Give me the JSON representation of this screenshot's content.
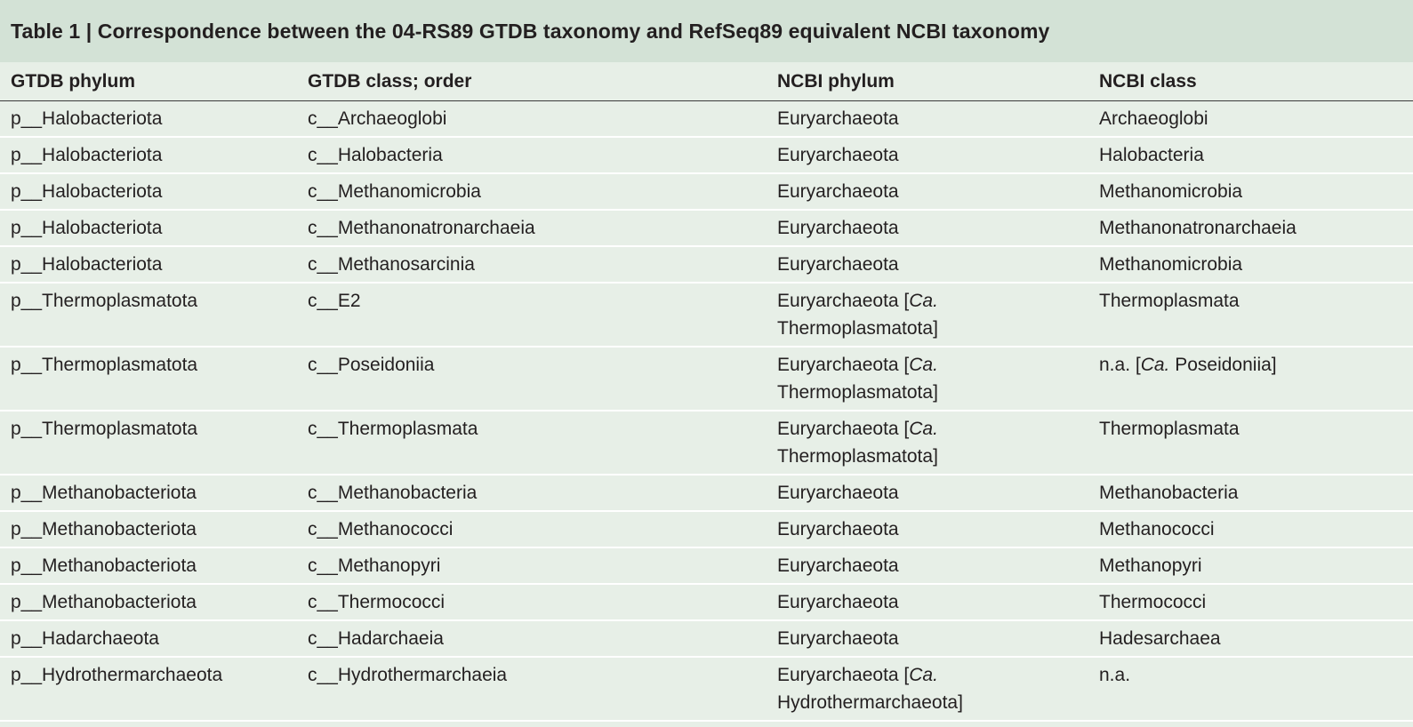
{
  "title": "Table 1 | Correspondence between the 04-RS89 GTDB taxonomy and RefSeq89 equivalent NCBI taxonomy",
  "headers": [
    "GTDB phylum",
    "GTDB class; order",
    "NCBI phylum",
    "NCBI class"
  ],
  "rows": [
    {
      "gtdb_phylum": "p__Halobacteriota",
      "gtdb_class": "c__Archaeoglobi",
      "ncbi_phylum": {
        "pre": "Euryarchaeota",
        "ca": "",
        "post": ""
      },
      "ncbi_class": {
        "pre": "Archaeoglobi",
        "ca": "",
        "post": ""
      }
    },
    {
      "gtdb_phylum": "p__Halobacteriota",
      "gtdb_class": "c__Halobacteria",
      "ncbi_phylum": {
        "pre": "Euryarchaeota",
        "ca": "",
        "post": ""
      },
      "ncbi_class": {
        "pre": "Halobacteria",
        "ca": "",
        "post": ""
      }
    },
    {
      "gtdb_phylum": "p__Halobacteriota",
      "gtdb_class": "c__Methanomicrobia",
      "ncbi_phylum": {
        "pre": "Euryarchaeota",
        "ca": "",
        "post": ""
      },
      "ncbi_class": {
        "pre": "Methanomicrobia",
        "ca": "",
        "post": ""
      }
    },
    {
      "gtdb_phylum": "p__Halobacteriota",
      "gtdb_class": "c__Methanonatronarchaeia",
      "ncbi_phylum": {
        "pre": "Euryarchaeota",
        "ca": "",
        "post": ""
      },
      "ncbi_class": {
        "pre": "Methanonatronarchaeia",
        "ca": "",
        "post": ""
      }
    },
    {
      "gtdb_phylum": "p__Halobacteriota",
      "gtdb_class": "c__Methanosarcinia",
      "ncbi_phylum": {
        "pre": "Euryarchaeota",
        "ca": "",
        "post": ""
      },
      "ncbi_class": {
        "pre": "Methanomicrobia",
        "ca": "",
        "post": ""
      }
    },
    {
      "gtdb_phylum": "p__Thermoplasmatota",
      "gtdb_class": "c__E2",
      "ncbi_phylum": {
        "pre": "Euryarchaeota [",
        "ca": "Ca.",
        "post": "\nThermoplasmatota]"
      },
      "ncbi_class": {
        "pre": "Thermoplasmata",
        "ca": "",
        "post": ""
      }
    },
    {
      "gtdb_phylum": "p__Thermoplasmatota",
      "gtdb_class": "c__Poseidoniia",
      "ncbi_phylum": {
        "pre": "Euryarchaeota [",
        "ca": "Ca.",
        "post": "\nThermoplasmatota]"
      },
      "ncbi_class": {
        "pre": "n.a. [",
        "ca": "Ca.",
        "post": " Poseidoniia]"
      }
    },
    {
      "gtdb_phylum": "p__Thermoplasmatota",
      "gtdb_class": "c__Thermoplasmata",
      "ncbi_phylum": {
        "pre": "Euryarchaeota [",
        "ca": "Ca.",
        "post": "\nThermoplasmatota]"
      },
      "ncbi_class": {
        "pre": "Thermoplasmata",
        "ca": "",
        "post": ""
      }
    },
    {
      "gtdb_phylum": "p__Methanobacteriota",
      "gtdb_class": "c__Methanobacteria",
      "ncbi_phylum": {
        "pre": "Euryarchaeota",
        "ca": "",
        "post": ""
      },
      "ncbi_class": {
        "pre": "Methanobacteria",
        "ca": "",
        "post": ""
      }
    },
    {
      "gtdb_phylum": "p__Methanobacteriota",
      "gtdb_class": "c__Methanococci",
      "ncbi_phylum": {
        "pre": "Euryarchaeota",
        "ca": "",
        "post": ""
      },
      "ncbi_class": {
        "pre": "Methanococci",
        "ca": "",
        "post": ""
      }
    },
    {
      "gtdb_phylum": "p__Methanobacteriota",
      "gtdb_class": "c__Methanopyri",
      "ncbi_phylum": {
        "pre": "Euryarchaeota",
        "ca": "",
        "post": ""
      },
      "ncbi_class": {
        "pre": "Methanopyri",
        "ca": "",
        "post": ""
      }
    },
    {
      "gtdb_phylum": "p__Methanobacteriota",
      "gtdb_class": "c__Thermococci",
      "ncbi_phylum": {
        "pre": "Euryarchaeota",
        "ca": "",
        "post": ""
      },
      "ncbi_class": {
        "pre": "Thermococci",
        "ca": "",
        "post": ""
      }
    },
    {
      "gtdb_phylum": "p__Hadarchaeota",
      "gtdb_class": "c__Hadarchaeia",
      "ncbi_phylum": {
        "pre": "Euryarchaeota",
        "ca": "",
        "post": ""
      },
      "ncbi_class": {
        "pre": "Hadesarchaea",
        "ca": "",
        "post": ""
      }
    },
    {
      "gtdb_phylum": "p__Hydrothermarchaeota",
      "gtdb_class": "c__Hydrothermarchaeia",
      "ncbi_phylum": {
        "pre": "Euryarchaeota [",
        "ca": "Ca.",
        "post": "\nHydrothermarchaeota]"
      },
      "ncbi_class": {
        "pre": "n.a.",
        "ca": "",
        "post": ""
      }
    }
  ]
}
